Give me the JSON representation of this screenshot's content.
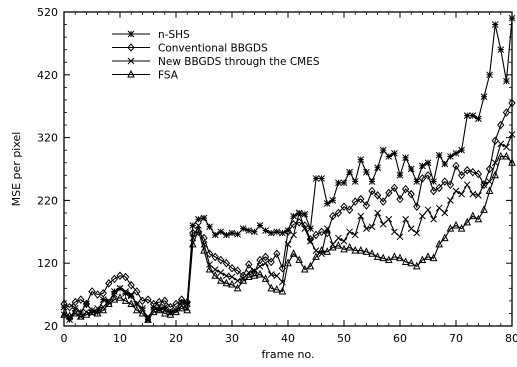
{
  "chart_data": {
    "type": "line",
    "title": "",
    "xlabel": "frame no.",
    "ylabel": "MSE per pixel",
    "xlim": [
      0,
      80
    ],
    "ylim": [
      20,
      520
    ],
    "xticks": [
      0,
      10,
      20,
      30,
      40,
      50,
      60,
      70,
      80
    ],
    "yticks": [
      20,
      120,
      220,
      320,
      420,
      520
    ],
    "grid": false,
    "legend_position": "top-left",
    "series": [
      {
        "name": "n-SHS",
        "marker": "asterisk",
        "x": [
          0,
          1,
          2,
          3,
          4,
          5,
          6,
          7,
          8,
          9,
          10,
          11,
          12,
          13,
          14,
          15,
          16,
          17,
          18,
          19,
          20,
          21,
          22,
          23,
          24,
          25,
          26,
          27,
          28,
          29,
          30,
          31,
          32,
          33,
          34,
          35,
          36,
          37,
          38,
          39,
          40,
          41,
          42,
          43,
          44,
          45,
          46,
          47,
          48,
          49,
          50,
          51,
          52,
          53,
          54,
          55,
          56,
          57,
          58,
          59,
          60,
          61,
          62,
          63,
          64,
          65,
          66,
          67,
          68,
          69,
          70,
          71,
          72,
          73,
          74,
          75,
          76,
          77,
          78,
          79,
          80
        ],
        "values": [
          50,
          30,
          48,
          42,
          55,
          45,
          42,
          62,
          58,
          75,
          80,
          72,
          68,
          55,
          48,
          30,
          50,
          46,
          50,
          42,
          45,
          58,
          55,
          180,
          190,
          192,
          178,
          165,
          170,
          165,
          168,
          166,
          175,
          172,
          170,
          180,
          172,
          168,
          170,
          168,
          172,
          195,
          200,
          198,
          175,
          255,
          255,
          215,
          220,
          248,
          248,
          265,
          250,
          285,
          265,
          250,
          272,
          300,
          290,
          295,
          260,
          288,
          270,
          250,
          275,
          280,
          250,
          292,
          278,
          290,
          295,
          300,
          355,
          355,
          350,
          385,
          420,
          500,
          460,
          410,
          510
        ]
      },
      {
        "name": "Conventional BBGDS",
        "marker": "diamond",
        "x": [
          0,
          1,
          2,
          3,
          4,
          5,
          6,
          7,
          8,
          9,
          10,
          11,
          12,
          13,
          14,
          15,
          16,
          17,
          18,
          19,
          20,
          21,
          22,
          23,
          24,
          25,
          26,
          27,
          28,
          29,
          30,
          31,
          32,
          33,
          34,
          35,
          36,
          37,
          38,
          39,
          40,
          41,
          42,
          43,
          44,
          45,
          46,
          47,
          48,
          49,
          50,
          51,
          52,
          53,
          54,
          55,
          56,
          57,
          58,
          59,
          60,
          61,
          62,
          63,
          64,
          65,
          66,
          67,
          68,
          69,
          70,
          71,
          72,
          73,
          74,
          75,
          76,
          77,
          78,
          79,
          80
        ],
        "values": [
          55,
          50,
          58,
          62,
          55,
          75,
          70,
          72,
          88,
          95,
          100,
          98,
          85,
          75,
          60,
          62,
          55,
          58,
          60,
          50,
          55,
          62,
          58,
          168,
          170,
          160,
          135,
          130,
          125,
          120,
          112,
          108,
          100,
          118,
          105,
          125,
          130,
          122,
          135,
          112,
          170,
          182,
          185,
          180,
          158,
          165,
          170,
          168,
          195,
          200,
          210,
          205,
          218,
          222,
          212,
          235,
          228,
          218,
          232,
          240,
          222,
          238,
          230,
          210,
          255,
          260,
          235,
          240,
          250,
          245,
          275,
          260,
          268,
          265,
          262,
          245,
          270,
          315,
          340,
          360,
          375
        ]
      },
      {
        "name": "New BBGDS through the CMES",
        "marker": "x",
        "x": [
          0,
          1,
          2,
          3,
          4,
          5,
          6,
          7,
          8,
          9,
          10,
          11,
          12,
          13,
          14,
          15,
          16,
          17,
          18,
          19,
          20,
          21,
          22,
          23,
          24,
          25,
          26,
          27,
          28,
          29,
          30,
          31,
          32,
          33,
          34,
          35,
          36,
          37,
          38,
          39,
          40,
          41,
          42,
          43,
          44,
          45,
          46,
          47,
          48,
          49,
          50,
          51,
          52,
          53,
          54,
          55,
          56,
          57,
          58,
          59,
          60,
          61,
          62,
          63,
          64,
          65,
          66,
          67,
          68,
          69,
          70,
          71,
          72,
          73,
          74,
          75,
          76,
          77,
          78,
          79,
          80
        ],
        "values": [
          38,
          35,
          40,
          35,
          42,
          40,
          48,
          50,
          60,
          70,
          80,
          75,
          70,
          55,
          45,
          35,
          45,
          50,
          46,
          40,
          45,
          52,
          48,
          160,
          180,
          150,
          118,
          110,
          105,
          100,
          98,
          92,
          96,
          105,
          108,
          115,
          120,
          102,
          100,
          90,
          150,
          165,
          200,
          175,
          155,
          140,
          135,
          175,
          150,
          160,
          155,
          170,
          165,
          195,
          175,
          178,
          200,
          182,
          190,
          170,
          162,
          190,
          175,
          168,
          195,
          205,
          190,
          208,
          200,
          220,
          235,
          230,
          245,
          230,
          228,
          245,
          250,
          280,
          310,
          305,
          325
        ]
      },
      {
        "name": "FSA",
        "marker": "triangle",
        "x": [
          0,
          1,
          2,
          3,
          4,
          5,
          6,
          7,
          8,
          9,
          10,
          11,
          12,
          13,
          14,
          15,
          16,
          17,
          18,
          19,
          20,
          21,
          22,
          23,
          24,
          25,
          26,
          27,
          28,
          29,
          30,
          31,
          32,
          33,
          34,
          35,
          36,
          37,
          38,
          39,
          40,
          41,
          42,
          43,
          44,
          45,
          46,
          47,
          48,
          49,
          50,
          51,
          52,
          53,
          54,
          55,
          56,
          57,
          58,
          59,
          60,
          61,
          62,
          63,
          64,
          65,
          66,
          67,
          68,
          69,
          70,
          71,
          72,
          73,
          74,
          75,
          76,
          77,
          78,
          79,
          80
        ],
        "values": [
          38,
          36,
          40,
          35,
          38,
          42,
          40,
          45,
          55,
          62,
          65,
          60,
          55,
          45,
          40,
          30,
          42,
          45,
          40,
          38,
          42,
          48,
          45,
          150,
          172,
          140,
          110,
          100,
          92,
          88,
          86,
          80,
          92,
          98,
          100,
          102,
          95,
          80,
          78,
          75,
          120,
          135,
          125,
          110,
          115,
          130,
          140,
          138,
          145,
          148,
          142,
          145,
          140,
          140,
          138,
          135,
          130,
          128,
          125,
          130,
          128,
          122,
          120,
          115,
          125,
          130,
          128,
          150,
          160,
          175,
          180,
          175,
          185,
          195,
          190,
          205,
          235,
          260,
          290,
          290,
          280
        ]
      }
    ]
  }
}
